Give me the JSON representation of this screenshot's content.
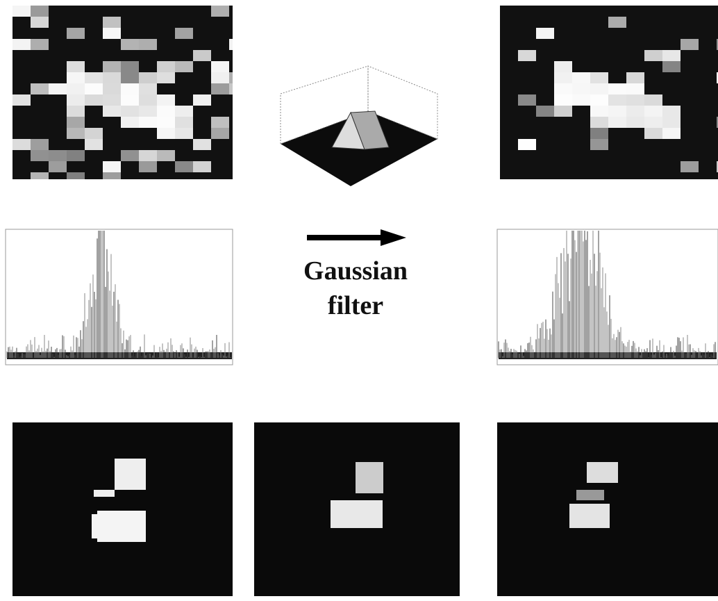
{
  "label": {
    "lines": [
      "Gaussian",
      "filter"
    ]
  }
}
